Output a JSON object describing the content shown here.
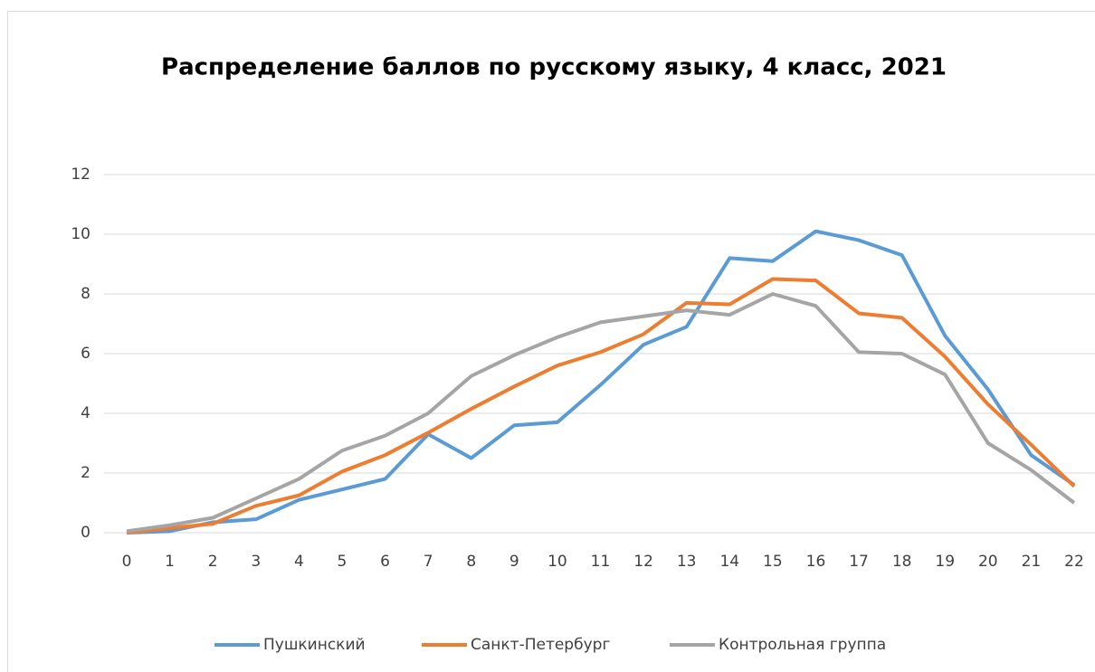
{
  "chart_data": {
    "type": "line",
    "title": "Распределение баллов по русскому языку, 4 класс, 2021",
    "categories": [
      "0",
      "1",
      "2",
      "3",
      "4",
      "5",
      "6",
      "7",
      "8",
      "9",
      "10",
      "11",
      "12",
      "13",
      "14",
      "15",
      "16",
      "17",
      "18",
      "19",
      "20",
      "21",
      "22"
    ],
    "series": [
      {
        "name": "Пушкинский",
        "color": "#5b9bd5",
        "values": [
          0,
          0.05,
          0.35,
          0.45,
          1.1,
          1.45,
          1.8,
          3.3,
          2.5,
          3.6,
          3.7,
          4.95,
          6.3,
          6.9,
          9.2,
          9.1,
          10.1,
          9.8,
          9.3,
          6.6,
          4.8,
          2.6,
          1.6
        ]
      },
      {
        "name": "Санкт-Петербург",
        "color": "#ed7d31",
        "values": [
          0,
          0.15,
          0.3,
          0.9,
          1.25,
          2.05,
          2.6,
          3.35,
          4.15,
          4.9,
          5.6,
          6.05,
          6.65,
          7.7,
          7.65,
          8.5,
          8.45,
          7.35,
          7.2,
          5.9,
          4.3,
          2.95,
          1.55
        ]
      },
      {
        "name": "Контрольная группа",
        "color": "#a5a5a5",
        "values": [
          0.05,
          0.25,
          0.5,
          1.15,
          1.8,
          2.75,
          3.25,
          4.0,
          5.25,
          5.95,
          6.55,
          7.05,
          7.25,
          7.45,
          7.3,
          8.0,
          7.6,
          6.05,
          6.0,
          5.3,
          3.0,
          2.1,
          1.0
        ]
      }
    ],
    "ylim": [
      0,
      12
    ],
    "yticks": [
      0,
      2,
      4,
      6,
      8,
      10,
      12
    ],
    "grid": true,
    "legend": "bottom"
  }
}
